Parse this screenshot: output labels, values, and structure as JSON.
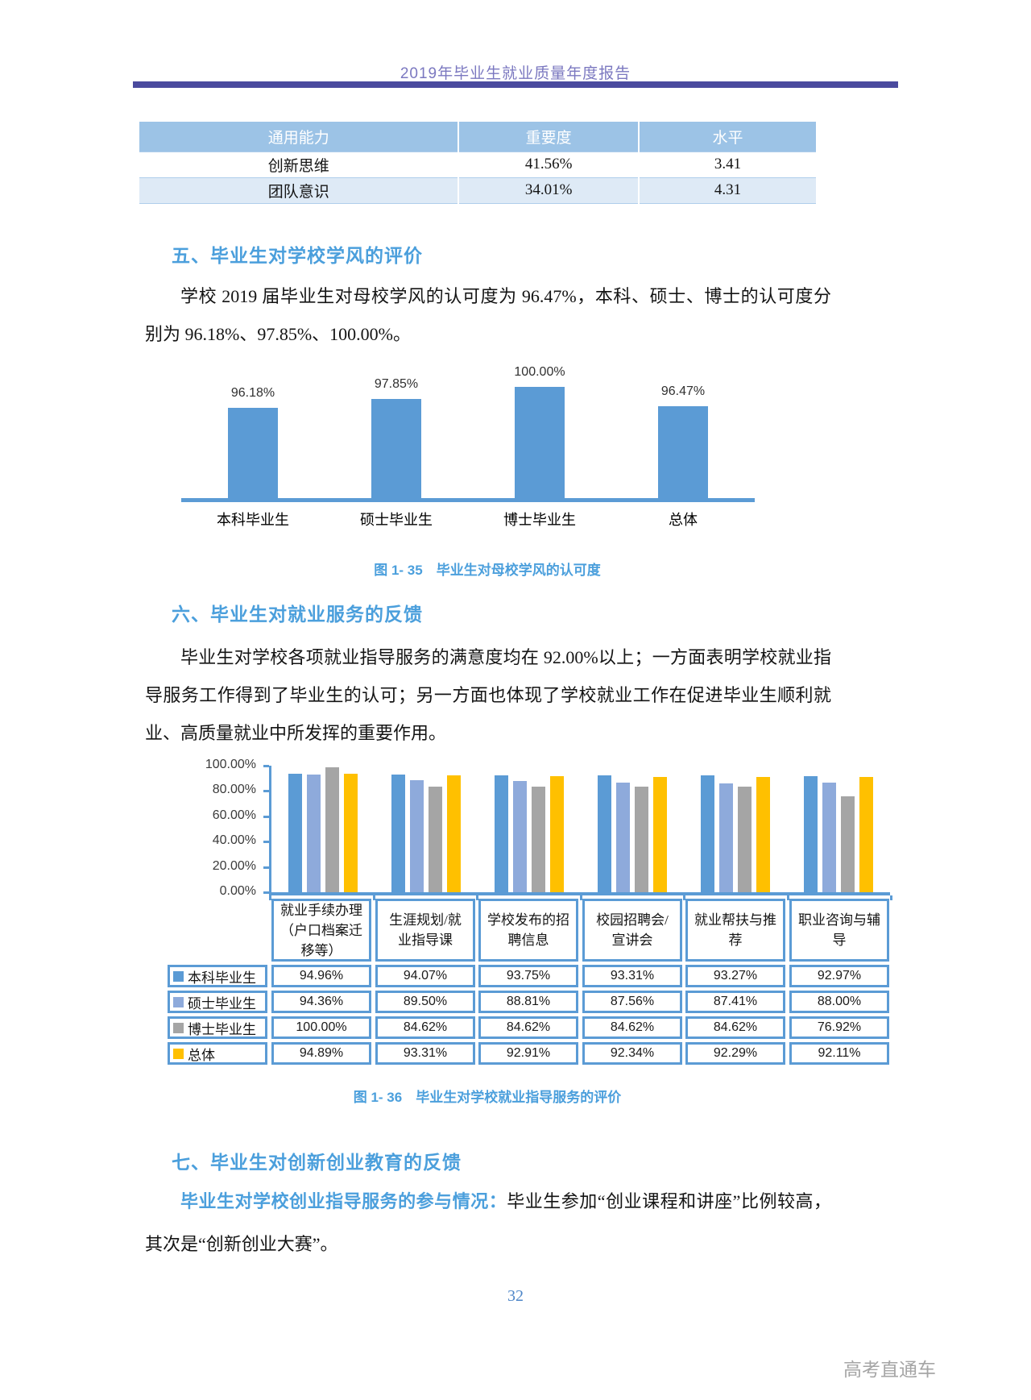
{
  "header": {
    "title": "2019年毕业生就业质量年度报告"
  },
  "ability_table": {
    "headers": [
      "通用能力",
      "重要度",
      "水平"
    ],
    "rows": [
      [
        "创新思维",
        "41.56%",
        "3.41"
      ],
      [
        "团队意识",
        "34.01%",
        "4.31"
      ]
    ]
  },
  "section5": {
    "heading": "五、毕业生对学校学风的评价",
    "paragraph": "学校 2019 届毕业生对母校学风的认可度为 96.47%，本科、硕士、博士的认可度分别为 96.18%、97.85%、100.00%。"
  },
  "figure35": {
    "caption": "图 1- 35　毕业生对母校学风的认可度"
  },
  "section6": {
    "heading": "六、毕业生对就业服务的反馈",
    "paragraph": "毕业生对学校各项就业指导服务的满意度均在 92.00%以上；一方面表明学校就业指导服务工作得到了毕业生的认可；另一方面也体现了学校就业工作在促进毕业生顺利就业、高质量就业中所发挥的重要作用。"
  },
  "figure36": {
    "caption": "图 1- 36　毕业生对学校就业指导服务的评价"
  },
  "section7": {
    "heading": "七、毕业生对创新创业教育的反馈",
    "lead": "毕业生对学校创业指导服务的参与情况：",
    "paragraph_rest": "毕业生参加“创业课程和讲座”比例较高，其次是“创新创业大赛”。"
  },
  "footer": {
    "page_number": "32",
    "watermark": "高考直通车"
  },
  "colors": {
    "accent_blue": "#4B9FDC",
    "bar_blue": "#5B9BD5",
    "bar_periwinkle": "#8EAADB",
    "bar_gray": "#A5A5A5",
    "bar_gold": "#FFC000",
    "header_purple": "#7B78C0",
    "rule_purple": "#4A4A9E",
    "table_header_bg": "#9CC3E6",
    "table_alt_row": "#DEEAF6"
  },
  "chart_data": [
    {
      "id": "fig1-35",
      "type": "bar",
      "title": "毕业生对母校学风的认可度",
      "categories": [
        "本科毕业生",
        "硕士毕业生",
        "博士毕业生",
        "总体"
      ],
      "values": [
        96.18,
        97.85,
        100.0,
        96.47
      ],
      "data_labels": [
        "96.18%",
        "97.85%",
        "100.00%",
        "96.47%"
      ],
      "bar_color": "#5B9BD5",
      "visual_ymin": 80,
      "ymax": 100,
      "grid": false,
      "legend_position": "none"
    },
    {
      "id": "fig1-36",
      "type": "bar",
      "title": "毕业生对学校就业指导服务的评价",
      "categories": [
        "就业手续办理（户口档案迁移等）",
        "生涯规划/就业指导课",
        "学校发布的招聘信息",
        "校园招聘会/宣讲会",
        "就业帮扶与推荐",
        "职业咨询与辅导"
      ],
      "series": [
        {
          "name": "本科毕业生",
          "color": "#5B9BD5",
          "values": [
            94.96,
            94.07,
            93.75,
            93.31,
            93.27,
            92.97
          ],
          "labels": [
            "94.96%",
            "94.07%",
            "93.75%",
            "93.31%",
            "93.27%",
            "92.97%"
          ]
        },
        {
          "name": "硕士毕业生",
          "color": "#8EAADB",
          "values": [
            94.36,
            89.5,
            88.81,
            87.56,
            87.41,
            88.0
          ],
          "labels": [
            "94.36%",
            "89.50%",
            "88.81%",
            "87.56%",
            "87.41%",
            "88.00%"
          ]
        },
        {
          "name": "博士毕业生",
          "color": "#A5A5A5",
          "values": [
            100.0,
            84.62,
            84.62,
            84.62,
            84.62,
            76.92
          ],
          "labels": [
            "100.00%",
            "84.62%",
            "84.62%",
            "84.62%",
            "84.62%",
            "76.92%"
          ]
        },
        {
          "name": "总体",
          "color": "#FFC000",
          "values": [
            94.89,
            93.31,
            92.91,
            92.34,
            92.29,
            92.11
          ],
          "labels": [
            "94.89%",
            "93.31%",
            "92.91%",
            "92.34%",
            "92.29%",
            "92.11%"
          ]
        }
      ],
      "y_ticks": [
        "100.00%",
        "80.00%",
        "60.00%",
        "40.00%",
        "20.00%",
        "0.00%"
      ],
      "ylim": [
        0,
        100
      ],
      "grid": false,
      "legend_position": "table-left"
    }
  ]
}
